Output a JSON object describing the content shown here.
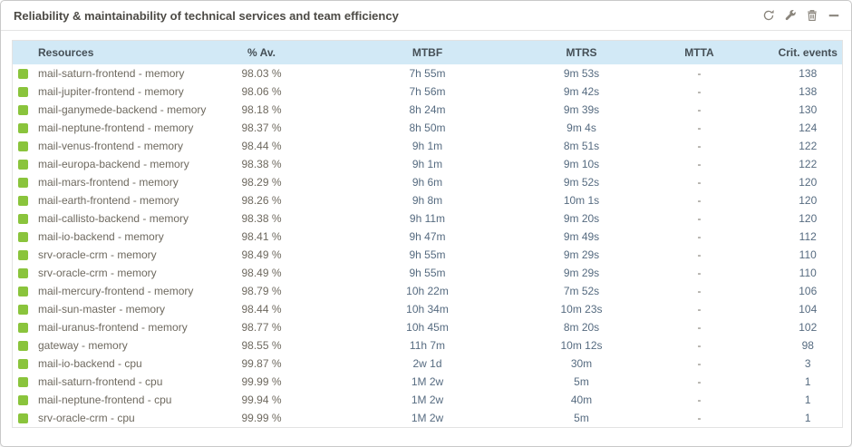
{
  "widget": {
    "title": "Reliability & maintainability of technical services and team efficiency",
    "toolbar": {
      "refresh_icon": "refresh-icon",
      "edit_icon": "wrench-icon",
      "delete_icon": "trash-icon",
      "minimize_icon": "minus-icon"
    }
  },
  "colors": {
    "header_bg": "#d2e9f6",
    "status_ok": "#8ac43c",
    "title_text": "#4c4a45",
    "resource_text": "#6e695f",
    "value_text": "#566b80",
    "card_border": "#c9c9c9"
  },
  "table": {
    "columns": [
      "Resources",
      "% Av.",
      "MTBF",
      "MTRS",
      "MTTA",
      "Crit. events"
    ],
    "rows": [
      {
        "status": "ok",
        "resource": "mail-saturn-frontend - memory",
        "availability": "98.03 %",
        "mtbf": "7h 55m",
        "mtrs": "9m 53s",
        "mtta": "-",
        "crit_events": "138"
      },
      {
        "status": "ok",
        "resource": "mail-jupiter-frontend - memory",
        "availability": "98.06 %",
        "mtbf": "7h 56m",
        "mtrs": "9m 42s",
        "mtta": "-",
        "crit_events": "138"
      },
      {
        "status": "ok",
        "resource": "mail-ganymede-backend - memory",
        "availability": "98.18 %",
        "mtbf": "8h 24m",
        "mtrs": "9m 39s",
        "mtta": "-",
        "crit_events": "130"
      },
      {
        "status": "ok",
        "resource": "mail-neptune-frontend - memory",
        "availability": "98.37 %",
        "mtbf": "8h 50m",
        "mtrs": "9m 4s",
        "mtta": "-",
        "crit_events": "124"
      },
      {
        "status": "ok",
        "resource": "mail-venus-frontend - memory",
        "availability": "98.44 %",
        "mtbf": "9h 1m",
        "mtrs": "8m 51s",
        "mtta": "-",
        "crit_events": "122"
      },
      {
        "status": "ok",
        "resource": "mail-europa-backend - memory",
        "availability": "98.38 %",
        "mtbf": "9h 1m",
        "mtrs": "9m 10s",
        "mtta": "-",
        "crit_events": "122"
      },
      {
        "status": "ok",
        "resource": "mail-mars-frontend - memory",
        "availability": "98.29 %",
        "mtbf": "9h 6m",
        "mtrs": "9m 52s",
        "mtta": "-",
        "crit_events": "120"
      },
      {
        "status": "ok",
        "resource": "mail-earth-frontend - memory",
        "availability": "98.26 %",
        "mtbf": "9h 8m",
        "mtrs": "10m 1s",
        "mtta": "-",
        "crit_events": "120"
      },
      {
        "status": "ok",
        "resource": "mail-callisto-backend - memory",
        "availability": "98.38 %",
        "mtbf": "9h 11m",
        "mtrs": "9m 20s",
        "mtta": "-",
        "crit_events": "120"
      },
      {
        "status": "ok",
        "resource": "mail-io-backend - memory",
        "availability": "98.41 %",
        "mtbf": "9h 47m",
        "mtrs": "9m 49s",
        "mtta": "-",
        "crit_events": "112"
      },
      {
        "status": "ok",
        "resource": "srv-oracle-crm - memory",
        "availability": "98.49 %",
        "mtbf": "9h 55m",
        "mtrs": "9m 29s",
        "mtta": "-",
        "crit_events": "110"
      },
      {
        "status": "ok",
        "resource": "srv-oracle-crm - memory",
        "availability": "98.49 %",
        "mtbf": "9h 55m",
        "mtrs": "9m 29s",
        "mtta": "-",
        "crit_events": "110"
      },
      {
        "status": "ok",
        "resource": "mail-mercury-frontend - memory",
        "availability": "98.79 %",
        "mtbf": "10h 22m",
        "mtrs": "7m 52s",
        "mtta": "-",
        "crit_events": "106"
      },
      {
        "status": "ok",
        "resource": "mail-sun-master - memory",
        "availability": "98.44 %",
        "mtbf": "10h 34m",
        "mtrs": "10m 23s",
        "mtta": "-",
        "crit_events": "104"
      },
      {
        "status": "ok",
        "resource": "mail-uranus-frontend - memory",
        "availability": "98.77 %",
        "mtbf": "10h 45m",
        "mtrs": "8m 20s",
        "mtta": "-",
        "crit_events": "102"
      },
      {
        "status": "ok",
        "resource": "gateway - memory",
        "availability": "98.55 %",
        "mtbf": "11h 7m",
        "mtrs": "10m 12s",
        "mtta": "-",
        "crit_events": "98"
      },
      {
        "status": "ok",
        "resource": "mail-io-backend - cpu",
        "availability": "99.87 %",
        "mtbf": "2w 1d",
        "mtrs": "30m",
        "mtta": "-",
        "crit_events": "3"
      },
      {
        "status": "ok",
        "resource": "mail-saturn-frontend - cpu",
        "availability": "99.99 %",
        "mtbf": "1M 2w",
        "mtrs": "5m",
        "mtta": "-",
        "crit_events": "1"
      },
      {
        "status": "ok",
        "resource": "mail-neptune-frontend - cpu",
        "availability": "99.94 %",
        "mtbf": "1M 2w",
        "mtrs": "40m",
        "mtta": "-",
        "crit_events": "1"
      },
      {
        "status": "ok",
        "resource": "srv-oracle-crm - cpu",
        "availability": "99.99 %",
        "mtbf": "1M 2w",
        "mtrs": "5m",
        "mtta": "-",
        "crit_events": "1"
      }
    ]
  }
}
